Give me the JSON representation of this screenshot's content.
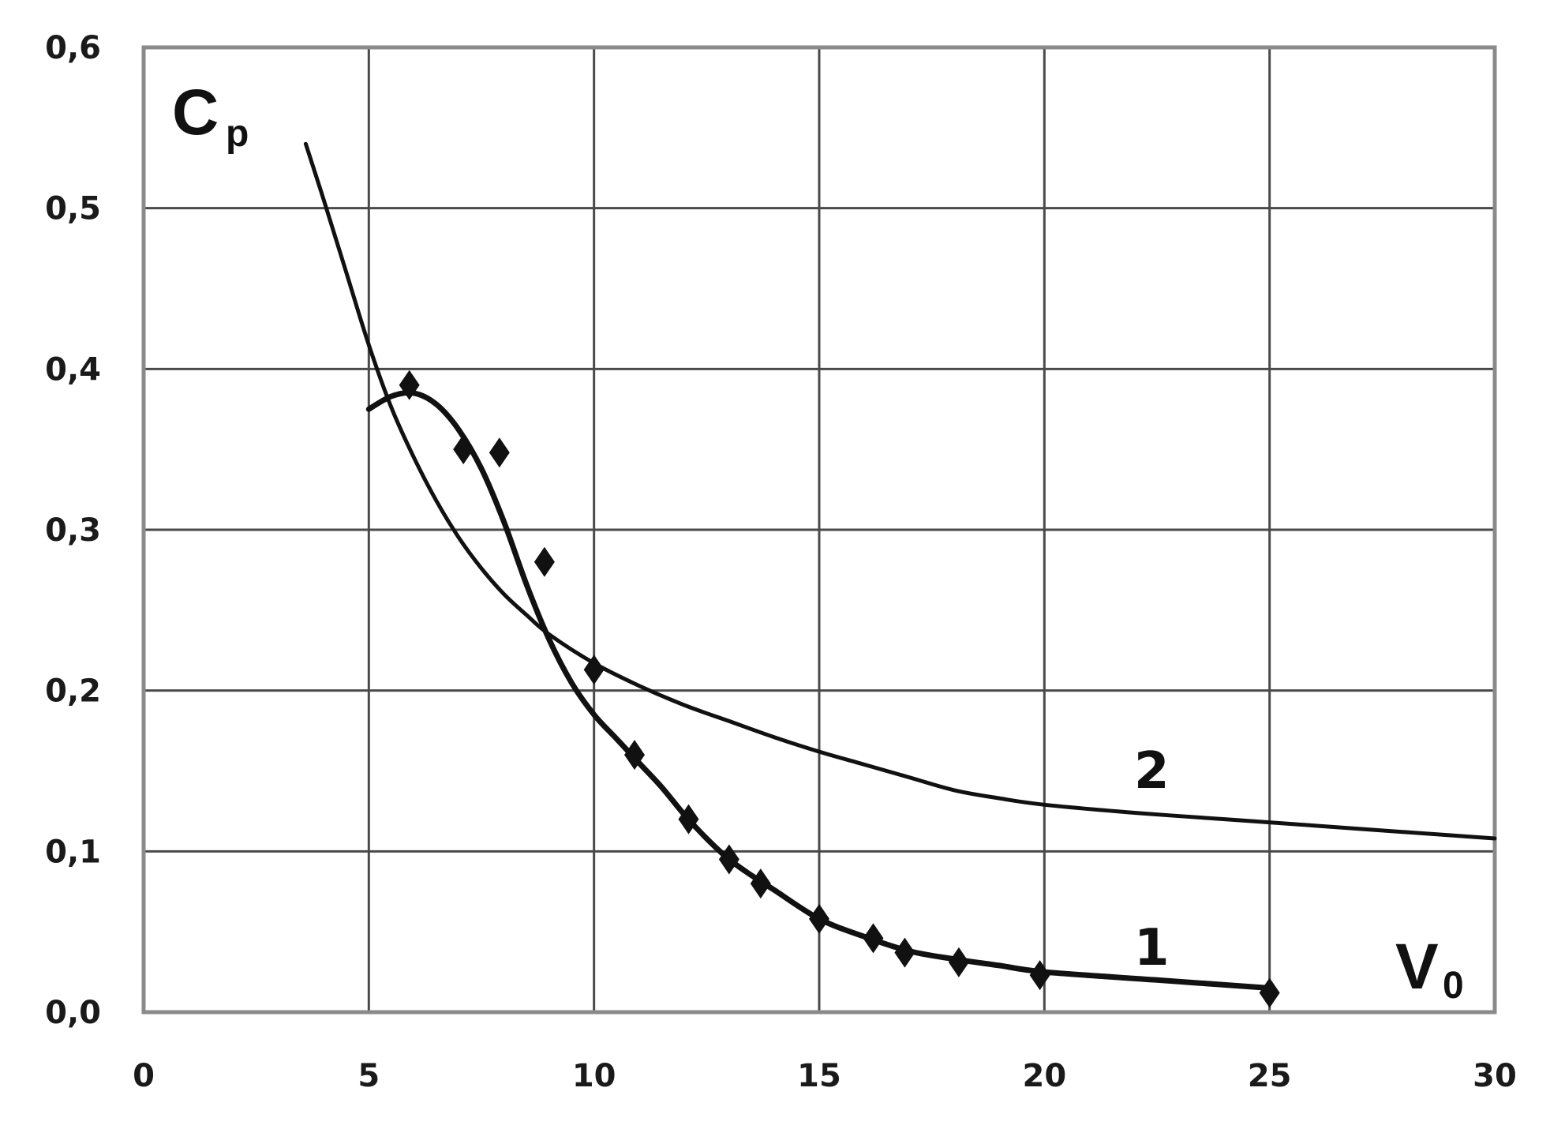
{
  "chart_data": {
    "type": "line",
    "title": "",
    "ylabel": "C",
    "ylabel_sub": "p",
    "xlabel": "V",
    "xlabel_sub": "0",
    "xlim": [
      0,
      30
    ],
    "ylim": [
      0,
      0.6
    ],
    "x_ticks": [
      0,
      5,
      10,
      15,
      20,
      25,
      30
    ],
    "x_tick_labels": [
      "0",
      "5",
      "10",
      "15",
      "20",
      "25",
      "30"
    ],
    "y_ticks": [
      0,
      0.1,
      0.2,
      0.3,
      0.4,
      0.5,
      0.6
    ],
    "y_tick_labels": [
      "0,0",
      "0,1",
      "0,2",
      "0,3",
      "0,4",
      "0,5",
      "0,6"
    ],
    "grid": true,
    "legend": "none",
    "series": [
      {
        "name": "1",
        "line": [
          [
            5,
            0.375
          ],
          [
            5.5,
            0.383
          ],
          [
            6,
            0.385
          ],
          [
            6.5,
            0.378
          ],
          [
            7,
            0.362
          ],
          [
            7.5,
            0.338
          ],
          [
            8,
            0.305
          ],
          [
            8.5,
            0.266
          ],
          [
            9,
            0.232
          ],
          [
            9.5,
            0.205
          ],
          [
            10,
            0.185
          ],
          [
            10.5,
            0.17
          ],
          [
            11,
            0.155
          ],
          [
            11.5,
            0.14
          ],
          [
            12,
            0.123
          ],
          [
            12.5,
            0.108
          ],
          [
            13,
            0.095
          ],
          [
            13.5,
            0.085
          ],
          [
            14,
            0.076
          ],
          [
            15,
            0.058
          ],
          [
            16,
            0.047
          ],
          [
            17,
            0.038
          ],
          [
            18,
            0.033
          ],
          [
            19,
            0.029
          ],
          [
            20,
            0.025
          ],
          [
            22.5,
            0.02
          ],
          [
            25,
            0.015
          ]
        ],
        "points": [
          [
            5.9,
            0.39
          ],
          [
            7.1,
            0.35
          ],
          [
            7.9,
            0.348
          ],
          [
            8.9,
            0.28
          ],
          [
            10,
            0.213
          ],
          [
            10.9,
            0.16
          ],
          [
            12.1,
            0.12
          ],
          [
            13,
            0.095
          ],
          [
            13.7,
            0.08
          ],
          [
            15,
            0.058
          ],
          [
            16.2,
            0.046
          ],
          [
            16.9,
            0.037
          ],
          [
            18.1,
            0.031
          ],
          [
            19.9,
            0.023
          ],
          [
            25,
            0.012
          ]
        ]
      },
      {
        "name": "2",
        "line": [
          [
            3.6,
            0.54
          ],
          [
            4,
            0.505
          ],
          [
            4.5,
            0.46
          ],
          [
            5,
            0.415
          ],
          [
            5.5,
            0.376
          ],
          [
            6,
            0.345
          ],
          [
            6.5,
            0.318
          ],
          [
            7,
            0.295
          ],
          [
            7.5,
            0.276
          ],
          [
            8,
            0.26
          ],
          [
            8.5,
            0.247
          ],
          [
            9,
            0.235
          ],
          [
            10,
            0.217
          ],
          [
            11,
            0.203
          ],
          [
            12,
            0.191
          ],
          [
            13,
            0.181
          ],
          [
            14,
            0.171
          ],
          [
            15,
            0.162
          ],
          [
            16,
            0.154
          ],
          [
            17,
            0.146
          ],
          [
            18,
            0.138
          ],
          [
            19,
            0.133
          ],
          [
            20,
            0.129
          ],
          [
            22,
            0.124
          ],
          [
            24,
            0.12
          ],
          [
            26,
            0.116
          ],
          [
            28,
            0.112
          ],
          [
            30,
            0.108
          ]
        ]
      }
    ]
  }
}
